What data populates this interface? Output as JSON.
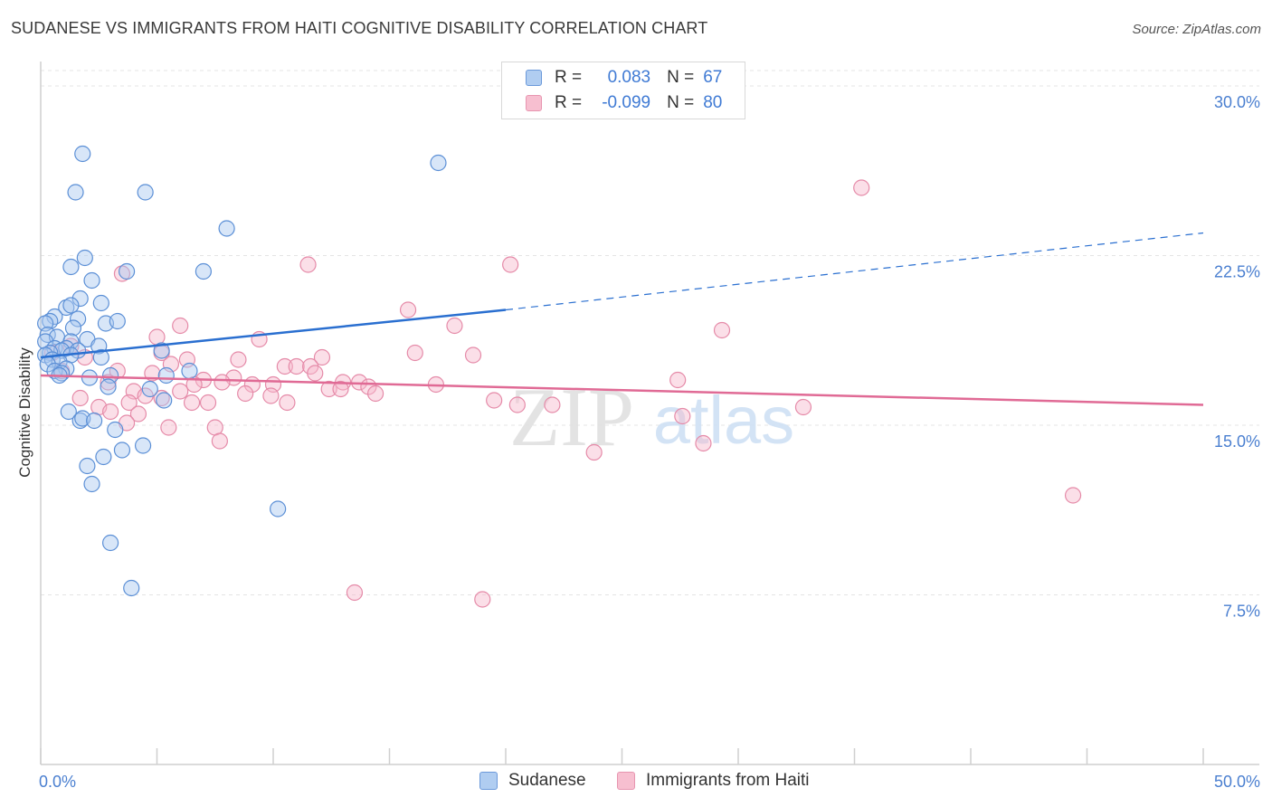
{
  "title": "SUDANESE VS IMMIGRANTS FROM HAITI COGNITIVE DISABILITY CORRELATION CHART",
  "source": "Source: ZipAtlas.com",
  "watermark": {
    "zip": "ZIP",
    "atlas": "atlas"
  },
  "legend": {
    "rows": [
      {
        "r_key": "R =",
        "r_value": "0.083",
        "n_key": "N =",
        "n_value": "67"
      },
      {
        "r_key": "R =",
        "r_value": "-0.099",
        "n_key": "N =",
        "n_value": "80"
      }
    ]
  },
  "bottom_legend": [
    "Sudanese",
    "Immigrants from Haiti"
  ],
  "colors": {
    "sudanese_fill": "#a8c8f0",
    "sudanese_stroke": "#5b8fd6",
    "sudanese_line": "#2a6fd0",
    "haiti_fill": "#f7b9cc",
    "haiti_stroke": "#e58aa8",
    "haiti_line": "#e06a95",
    "tick": "#4a7fd0",
    "grid": "#e4e4e4"
  },
  "chart_data": {
    "type": "scatter",
    "title": "SUDANESE VS IMMIGRANTS FROM HAITI COGNITIVE DISABILITY CORRELATION CHART",
    "xlabel": "",
    "ylabel": "Cognitive Disability",
    "xlim": [
      0,
      50
    ],
    "ylim": [
      0,
      31
    ],
    "x_tick_labels": [
      "0.0%",
      "50.0%"
    ],
    "y_ticks": [
      7.5,
      15.0,
      22.5,
      30.0
    ],
    "y_tick_labels": [
      "7.5%",
      "15.0%",
      "22.5%",
      "30.0%"
    ],
    "series": [
      {
        "name": "Sudanese",
        "r": 0.083,
        "n": 67,
        "trend": {
          "x0": 0,
          "y0": 18.0,
          "x_solid_end": 20,
          "y_solid_end": 20.1,
          "x1": 50,
          "y1": 23.5
        },
        "points": [
          [
            1.8,
            27.0
          ],
          [
            1.5,
            25.3
          ],
          [
            4.5,
            25.3
          ],
          [
            17.1,
            26.6
          ],
          [
            8.0,
            23.7
          ],
          [
            1.9,
            22.4
          ],
          [
            1.3,
            22.0
          ],
          [
            3.7,
            21.8
          ],
          [
            7.0,
            21.8
          ],
          [
            2.2,
            21.4
          ],
          [
            1.7,
            20.6
          ],
          [
            2.6,
            20.4
          ],
          [
            1.1,
            20.2
          ],
          [
            1.3,
            20.3
          ],
          [
            0.6,
            19.8
          ],
          [
            1.6,
            19.7
          ],
          [
            2.8,
            19.5
          ],
          [
            3.3,
            19.6
          ],
          [
            0.4,
            19.6
          ],
          [
            0.2,
            19.5
          ],
          [
            1.4,
            19.3
          ],
          [
            0.3,
            19.0
          ],
          [
            0.7,
            18.9
          ],
          [
            2.0,
            18.8
          ],
          [
            0.2,
            18.7
          ],
          [
            1.3,
            18.7
          ],
          [
            2.5,
            18.5
          ],
          [
            0.6,
            18.4
          ],
          [
            1.1,
            18.4
          ],
          [
            1.6,
            18.3
          ],
          [
            0.9,
            18.3
          ],
          [
            0.4,
            18.2
          ],
          [
            0.2,
            18.1
          ],
          [
            1.3,
            18.1
          ],
          [
            2.6,
            18.0
          ],
          [
            0.5,
            17.9
          ],
          [
            0.8,
            17.8
          ],
          [
            0.3,
            17.7
          ],
          [
            1.1,
            17.5
          ],
          [
            0.6,
            17.4
          ],
          [
            0.9,
            17.3
          ],
          [
            0.8,
            17.2
          ],
          [
            5.2,
            18.3
          ],
          [
            6.4,
            17.4
          ],
          [
            3.0,
            17.2
          ],
          [
            2.1,
            17.1
          ],
          [
            5.4,
            17.2
          ],
          [
            2.9,
            16.7
          ],
          [
            4.7,
            16.6
          ],
          [
            5.3,
            16.1
          ],
          [
            1.2,
            15.6
          ],
          [
            1.7,
            15.2
          ],
          [
            1.8,
            15.3
          ],
          [
            2.3,
            15.2
          ],
          [
            3.2,
            14.8
          ],
          [
            4.4,
            14.1
          ],
          [
            3.5,
            13.9
          ],
          [
            2.7,
            13.6
          ],
          [
            2.0,
            13.2
          ],
          [
            2.2,
            12.4
          ],
          [
            10.2,
            11.3
          ],
          [
            3.0,
            9.8
          ],
          [
            3.9,
            7.8
          ]
        ]
      },
      {
        "name": "Immigrants from Haiti",
        "r": -0.099,
        "n": 80,
        "trend": {
          "x0": 0,
          "y0": 17.2,
          "x1": 50,
          "y1": 15.9
        },
        "points": [
          [
            35.3,
            25.5
          ],
          [
            11.5,
            22.1
          ],
          [
            20.2,
            22.1
          ],
          [
            3.5,
            21.7
          ],
          [
            15.8,
            20.1
          ],
          [
            17.8,
            19.4
          ],
          [
            6.0,
            19.4
          ],
          [
            29.3,
            19.2
          ],
          [
            5.0,
            18.9
          ],
          [
            9.4,
            18.8
          ],
          [
            1.3,
            18.5
          ],
          [
            0.5,
            18.2
          ],
          [
            5.2,
            18.2
          ],
          [
            16.1,
            18.2
          ],
          [
            18.6,
            18.1
          ],
          [
            12.1,
            18.0
          ],
          [
            1.9,
            18.0
          ],
          [
            6.3,
            17.9
          ],
          [
            8.5,
            17.9
          ],
          [
            5.6,
            17.7
          ],
          [
            10.5,
            17.6
          ],
          [
            11.0,
            17.6
          ],
          [
            11.6,
            17.6
          ],
          [
            0.9,
            17.4
          ],
          [
            3.3,
            17.4
          ],
          [
            4.8,
            17.3
          ],
          [
            11.8,
            17.3
          ],
          [
            8.3,
            17.1
          ],
          [
            7.0,
            17.0
          ],
          [
            7.8,
            16.9
          ],
          [
            9.1,
            16.8
          ],
          [
            10.0,
            16.8
          ],
          [
            13.0,
            16.9
          ],
          [
            13.7,
            16.9
          ],
          [
            14.1,
            16.7
          ],
          [
            17.0,
            16.8
          ],
          [
            2.9,
            16.9
          ],
          [
            6.6,
            16.8
          ],
          [
            12.4,
            16.6
          ],
          [
            12.9,
            16.6
          ],
          [
            4.0,
            16.5
          ],
          [
            6.0,
            16.5
          ],
          [
            8.8,
            16.4
          ],
          [
            9.9,
            16.3
          ],
          [
            14.4,
            16.4
          ],
          [
            1.7,
            16.2
          ],
          [
            4.5,
            16.3
          ],
          [
            5.2,
            16.2
          ],
          [
            27.4,
            17.0
          ],
          [
            3.8,
            16.0
          ],
          [
            6.5,
            16.0
          ],
          [
            7.2,
            16.0
          ],
          [
            10.6,
            16.0
          ],
          [
            19.5,
            16.1
          ],
          [
            22.0,
            15.9
          ],
          [
            2.5,
            15.8
          ],
          [
            20.5,
            15.9
          ],
          [
            32.8,
            15.8
          ],
          [
            3.0,
            15.6
          ],
          [
            4.2,
            15.5
          ],
          [
            27.6,
            15.4
          ],
          [
            3.7,
            15.1
          ],
          [
            5.5,
            14.9
          ],
          [
            7.5,
            14.9
          ],
          [
            7.7,
            14.3
          ],
          [
            28.5,
            14.2
          ],
          [
            23.8,
            13.8
          ],
          [
            44.4,
            11.9
          ],
          [
            13.5,
            7.6
          ],
          [
            19.0,
            7.3
          ]
        ]
      }
    ]
  }
}
